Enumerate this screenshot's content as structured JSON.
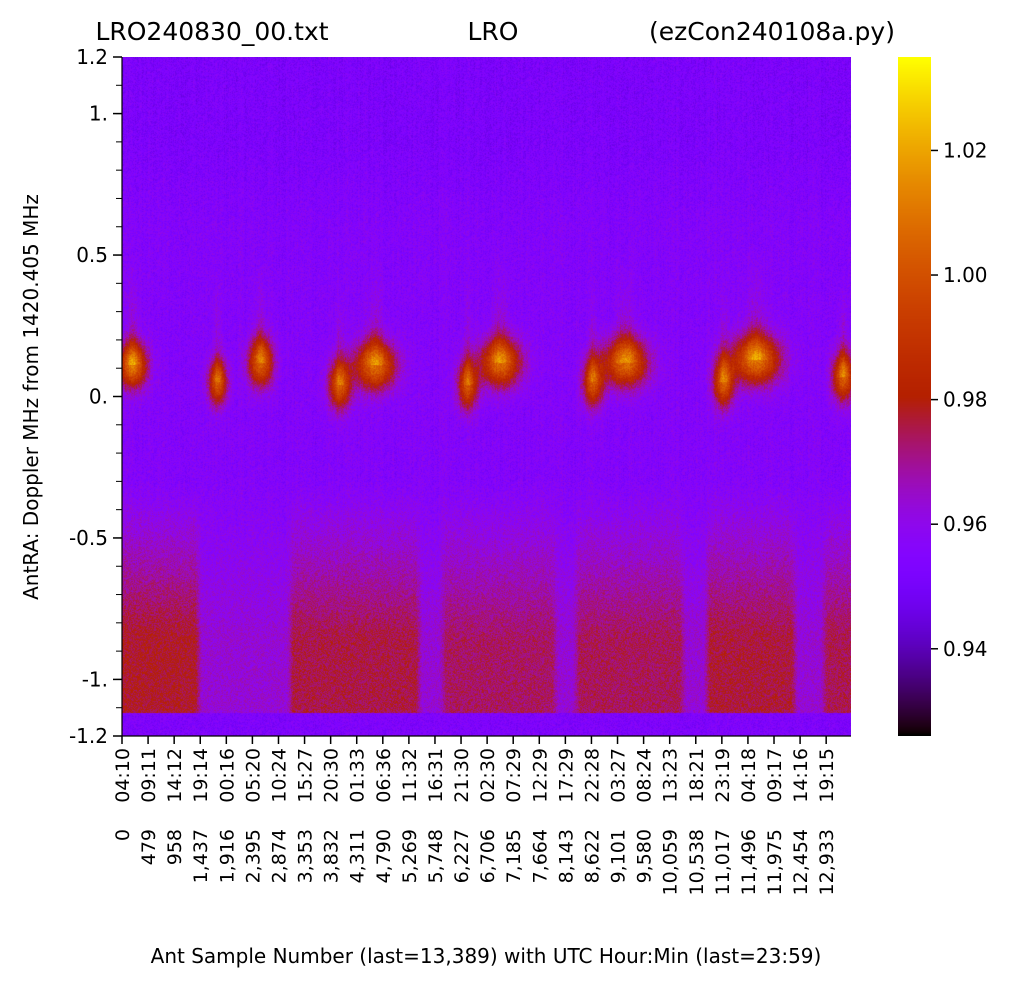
{
  "chart_data": {
    "type": "heatmap",
    "title": {
      "left": "LRO240830_00.txt",
      "center": "LRO",
      "right": "(ezCon240108a.py)"
    },
    "xlabel": "Ant Sample Number (last=13,389) with UTC Hour:Min (last=23:59)",
    "ylabel": "AntRA:  Doppler MHz from 1420.405 MHz",
    "x_range": [
      0,
      13389
    ],
    "y_range": [
      -1.2,
      1.2
    ],
    "x_ticks": [
      {
        "sample": 0,
        "sample_label": "0",
        "time_label": "04:10"
      },
      {
        "sample": 479,
        "sample_label": "479",
        "time_label": "09:11"
      },
      {
        "sample": 958,
        "sample_label": "958",
        "time_label": "14:12"
      },
      {
        "sample": 1437,
        "sample_label": "1,437",
        "time_label": "19:14"
      },
      {
        "sample": 1916,
        "sample_label": "1,916",
        "time_label": "00:16"
      },
      {
        "sample": 2395,
        "sample_label": "2,395",
        "time_label": "05:20"
      },
      {
        "sample": 2874,
        "sample_label": "2,874",
        "time_label": "10:24"
      },
      {
        "sample": 3353,
        "sample_label": "3,353",
        "time_label": "15:27"
      },
      {
        "sample": 3832,
        "sample_label": "3,832",
        "time_label": "20:30"
      },
      {
        "sample": 4311,
        "sample_label": "4,311",
        "time_label": "01:33"
      },
      {
        "sample": 4790,
        "sample_label": "4,790",
        "time_label": "06:36"
      },
      {
        "sample": 5269,
        "sample_label": "5,269",
        "time_label": "11:32"
      },
      {
        "sample": 5748,
        "sample_label": "5,748",
        "time_label": "16:31"
      },
      {
        "sample": 6227,
        "sample_label": "6,227",
        "time_label": "21:30"
      },
      {
        "sample": 6706,
        "sample_label": "6,706",
        "time_label": "02:30"
      },
      {
        "sample": 7185,
        "sample_label": "7,185",
        "time_label": "07:29"
      },
      {
        "sample": 7664,
        "sample_label": "7,664",
        "time_label": "12:29"
      },
      {
        "sample": 8143,
        "sample_label": "8,143",
        "time_label": "17:29"
      },
      {
        "sample": 8622,
        "sample_label": "8,622",
        "time_label": "22:28"
      },
      {
        "sample": 9101,
        "sample_label": "9,101",
        "time_label": "03:27"
      },
      {
        "sample": 9580,
        "sample_label": "9,580",
        "time_label": "08:24"
      },
      {
        "sample": 10059,
        "sample_label": "10,059",
        "time_label": "13:23"
      },
      {
        "sample": 10538,
        "sample_label": "10,538",
        "time_label": "18:21"
      },
      {
        "sample": 11017,
        "sample_label": "11,017",
        "time_label": "23:19"
      },
      {
        "sample": 11496,
        "sample_label": "11,496",
        "time_label": "04:18"
      },
      {
        "sample": 11975,
        "sample_label": "11,975",
        "time_label": "09:17"
      },
      {
        "sample": 12454,
        "sample_label": "12,454",
        "time_label": "14:16"
      },
      {
        "sample": 12933,
        "sample_label": "12,933",
        "time_label": "19:15"
      }
    ],
    "y_ticks": [
      {
        "value": 1.2,
        "label": "1.2"
      },
      {
        "value": 1.0,
        "label": "1."
      },
      {
        "value": 0.5,
        "label": "0.5"
      },
      {
        "value": 0.0,
        "label": "0."
      },
      {
        "value": -0.5,
        "label": "-0.5"
      },
      {
        "value": -1.0,
        "label": "-1."
      },
      {
        "value": -1.2,
        "label": "-1.2"
      }
    ],
    "y_minor_step": 0.1,
    "colorbar": {
      "colormap": "gnuplot",
      "range": [
        0.926,
        1.035
      ],
      "ticks": [
        {
          "value": 0.94,
          "label": "0.94"
        },
        {
          "value": 0.96,
          "label": "0.96"
        },
        {
          "value": 0.98,
          "label": "0.98"
        },
        {
          "value": 1.0,
          "label": "1.00"
        },
        {
          "value": 1.02,
          "label": "1.02"
        }
      ]
    },
    "background_level": 0.955,
    "edge_band": {
      "y_below": -1.12,
      "value": 0.953
    },
    "lower_warm_region": {
      "y_top": -0.3,
      "y_bottom": -1.12,
      "peak_value": 0.978
    },
    "upper_cool_region": {
      "y_top": 1.2,
      "y_bottom": 0.6,
      "value": 0.952
    },
    "doppler_signal_center_mhz": 0.1,
    "signal_peak_value": 1.01,
    "active_bands": [
      {
        "x_start": 0,
        "x_end": 1350,
        "lower_strength": 1.0
      },
      {
        "x_start": 3150,
        "x_end": 5400,
        "lower_strength": 0.85
      },
      {
        "x_start": 5950,
        "x_end": 7900,
        "lower_strength": 0.7
      },
      {
        "x_start": 8400,
        "x_end": 10250,
        "lower_strength": 0.75
      },
      {
        "x_start": 10800,
        "x_end": 12300,
        "lower_strength": 0.9
      },
      {
        "x_start": 12950,
        "x_end": 13389,
        "lower_strength": 0.8
      }
    ],
    "signal_blobs": [
      {
        "x": 200,
        "y": 0.11,
        "sx": 180,
        "sy": 0.055,
        "strength": 1.0
      },
      {
        "x": 1760,
        "y": 0.05,
        "sx": 120,
        "sy": 0.055,
        "strength": 0.85
      },
      {
        "x": 2550,
        "y": 0.12,
        "sx": 160,
        "sy": 0.06,
        "strength": 0.9
      },
      {
        "x": 4000,
        "y": 0.04,
        "sx": 140,
        "sy": 0.06,
        "strength": 0.85
      },
      {
        "x": 4650,
        "y": 0.11,
        "sx": 260,
        "sy": 0.06,
        "strength": 0.95
      },
      {
        "x": 6350,
        "y": 0.04,
        "sx": 130,
        "sy": 0.06,
        "strength": 0.8
      },
      {
        "x": 6950,
        "y": 0.12,
        "sx": 260,
        "sy": 0.06,
        "strength": 0.95
      },
      {
        "x": 8650,
        "y": 0.05,
        "sx": 130,
        "sy": 0.06,
        "strength": 0.8
      },
      {
        "x": 9250,
        "y": 0.12,
        "sx": 280,
        "sy": 0.06,
        "strength": 0.95
      },
      {
        "x": 11050,
        "y": 0.05,
        "sx": 130,
        "sy": 0.06,
        "strength": 0.85
      },
      {
        "x": 11650,
        "y": 0.13,
        "sx": 300,
        "sy": 0.06,
        "strength": 1.0
      },
      {
        "x": 13250,
        "y": 0.07,
        "sx": 140,
        "sy": 0.06,
        "strength": 0.9
      }
    ]
  }
}
